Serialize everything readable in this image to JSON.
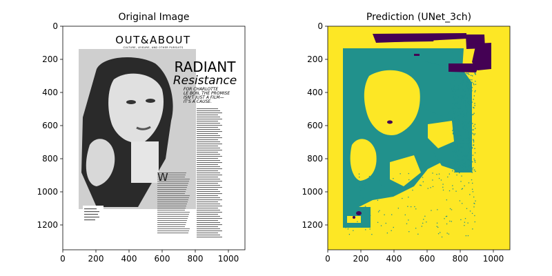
{
  "chart_data": [
    {
      "type": "image",
      "title": "Original Image",
      "xlim": [
        0,
        1100
      ],
      "ylim": [
        1350,
        0
      ],
      "x_ticks": [
        0,
        200,
        400,
        600,
        800,
        1000
      ],
      "y_ticks": [
        0,
        200,
        400,
        600,
        800,
        1000,
        1200
      ],
      "x_tick_labels": [
        "0",
        "200",
        "400",
        "600",
        "800",
        "1000"
      ],
      "y_tick_labels": [
        "0",
        "200",
        "400",
        "600",
        "800",
        "1000",
        "1200"
      ],
      "content": {
        "masthead": "OUT&ABOUT",
        "tagline": "CULTURE, LEISURE, AND OTHER PURSUITS",
        "headline_1": "RADIANT",
        "headline_2": "Resistance",
        "deck_1": "FOR CHARLOTTE",
        "deck_2": "LE BON, THE PROMISE",
        "deck_3": "ISN'T JUST A FILM—",
        "deck_4": "IT'S A CAUSE."
      }
    },
    {
      "type": "heatmap",
      "title": "Prediction (UNet_3ch)",
      "xlim": [
        0,
        1100
      ],
      "ylim": [
        1350,
        0
      ],
      "x_ticks": [
        0,
        200,
        400,
        600,
        800,
        1000
      ],
      "y_ticks": [
        0,
        200,
        400,
        600,
        800,
        1000,
        1200
      ],
      "x_tick_labels": [
        "0",
        "200",
        "400",
        "600",
        "800",
        "1000"
      ],
      "y_tick_labels": [
        "0",
        "200",
        "400",
        "600",
        "800",
        "1000",
        "1200"
      ],
      "colors": {
        "background": "#fde725",
        "figure": "#21918c",
        "text": "#440154"
      }
    }
  ]
}
